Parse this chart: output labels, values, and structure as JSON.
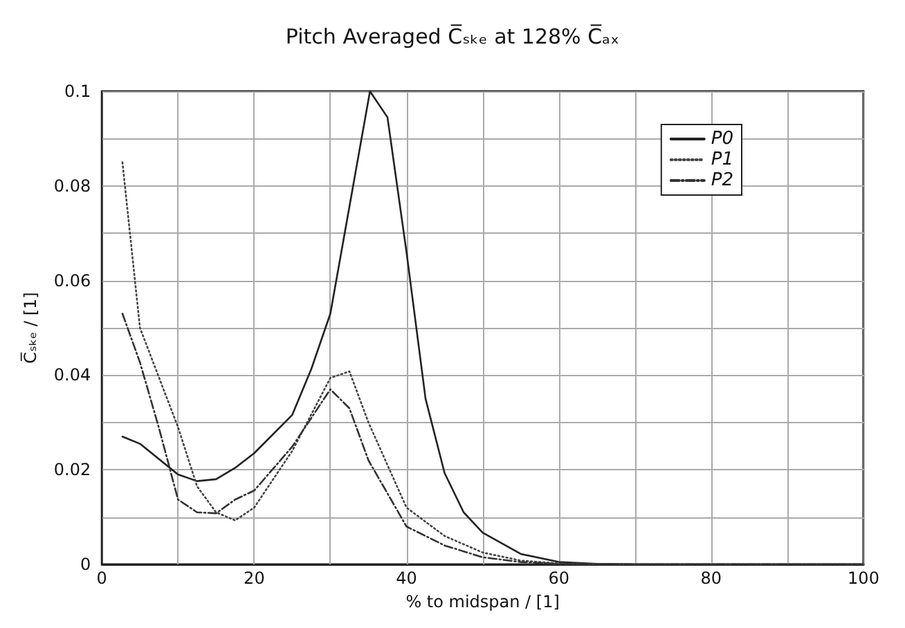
{
  "chart_data": {
    "type": "line",
    "title": "Pitch Averaged C̅ₛₖₑ at 128% C̅ₐₓ",
    "xlabel": "% to midspan / [1]",
    "ylabel": "C̅ₛₖₑ / [1]",
    "series": [
      {
        "name": "P0",
        "color": "#222222",
        "line_style": "solid",
        "x": [
          2.7,
          5,
          10,
          12.5,
          15,
          17.5,
          20,
          25,
          27.5,
          30,
          35.2,
          37.5,
          40,
          42.5,
          45,
          47.5,
          50,
          55,
          60,
          65,
          70,
          80,
          90,
          100
        ],
        "values": [
          0.027,
          0.0255,
          0.019,
          0.0176,
          0.018,
          0.0204,
          0.0235,
          0.0316,
          0.0413,
          0.053,
          0.1,
          0.0945,
          0.066,
          0.035,
          0.0193,
          0.011,
          0.0067,
          0.0022,
          0.0005,
          0.0001,
          0,
          0,
          0,
          0
        ]
      },
      {
        "name": "P1",
        "color": "#444444",
        "line_style": "dotted",
        "x": [
          2.7,
          5,
          10,
          12.5,
          15,
          17.5,
          20,
          25,
          30,
          32.5,
          35,
          40,
          45,
          50,
          55,
          60,
          65,
          70,
          80,
          90,
          100
        ],
        "values": [
          0.085,
          0.05,
          0.029,
          0.0165,
          0.011,
          0.0093,
          0.012,
          0.024,
          0.0394,
          0.0408,
          0.03,
          0.012,
          0.006,
          0.0025,
          0.0008,
          0.0002,
          0,
          0,
          0,
          0,
          0
        ]
      },
      {
        "name": "P2",
        "color": "#333333",
        "line_style": "dashed",
        "x": [
          2.7,
          5,
          7.5,
          10,
          12.5,
          15,
          17.5,
          20,
          25,
          30,
          32.5,
          35,
          40,
          45,
          50,
          55,
          60,
          70,
          80,
          90,
          100
        ],
        "values": [
          0.053,
          0.0427,
          0.0288,
          0.0137,
          0.011,
          0.0108,
          0.0137,
          0.0156,
          0.0249,
          0.037,
          0.033,
          0.022,
          0.008,
          0.004,
          0.0015,
          0.0005,
          0.0001,
          0,
          0,
          0,
          0
        ]
      }
    ],
    "xlim": [
      0,
      100
    ],
    "xticks": [
      0,
      {
        "value": 10,
        "label": null
      },
      20,
      {
        "value": 30,
        "label": null
      },
      40,
      {
        "value": 50,
        "label": null
      },
      60,
      {
        "value": 70,
        "label": null
      },
      80,
      {
        "value": 90,
        "label": null
      },
      100
    ],
    "ylim": [
      0,
      0.1
    ],
    "yticks": [
      0,
      {
        "value": 0.01,
        "label": null
      },
      0.02,
      {
        "value": 0.03,
        "label": null
      },
      0.04,
      {
        "value": 0.05,
        "label": null
      },
      0.06,
      {
        "value": 0.07,
        "label": null
      },
      0.08,
      {
        "value": 0.09,
        "label": null
      },
      0.1
    ],
    "grid": true,
    "legend": "top right"
  }
}
